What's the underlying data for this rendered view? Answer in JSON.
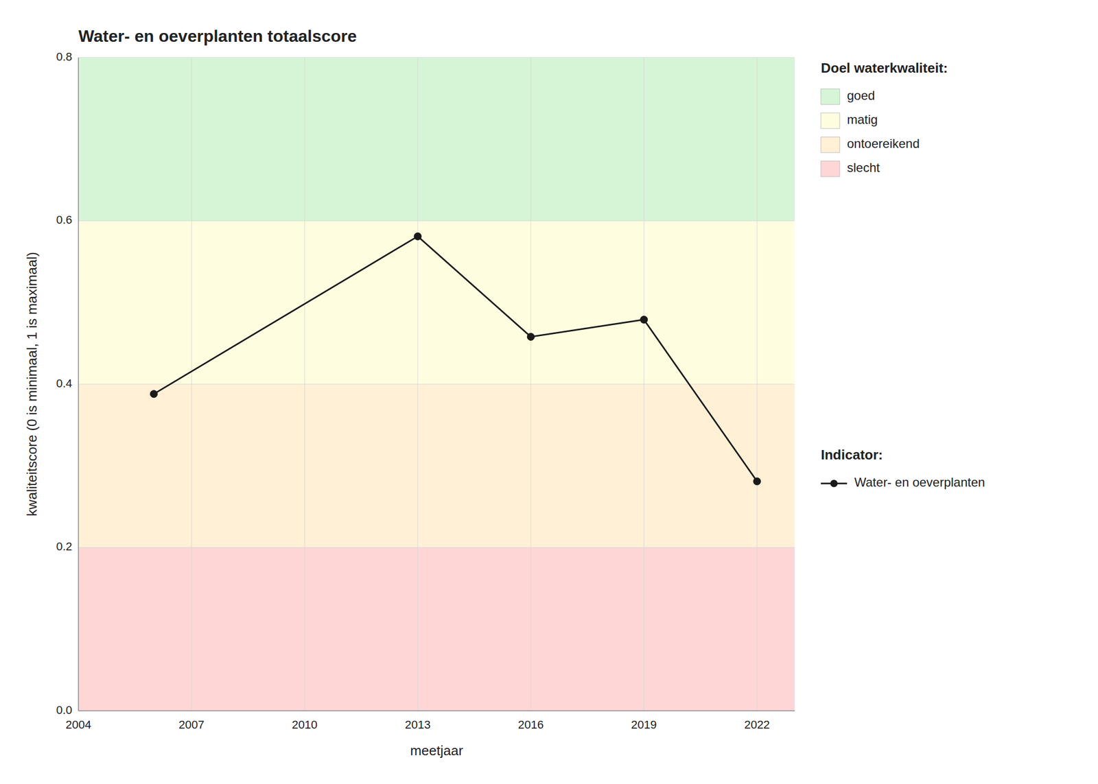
{
  "chart_data": {
    "type": "line",
    "title": "Water- en oeverplanten totaalscore",
    "x_label": "meetjaar",
    "y_label": "kwaliteitscore (0 is minimaal, 1 is maximaal)",
    "x": [
      2006,
      2013,
      2016,
      2019,
      2022
    ],
    "series": [
      {
        "name": "Water- en oeverplanten",
        "color": "#1a1a1a",
        "marker": "circle",
        "values": [
          0.388,
          0.581,
          0.458,
          0.479,
          0.281
        ]
      }
    ],
    "xlim": [
      2004,
      2023
    ],
    "ylim": [
      0.0,
      0.8
    ],
    "xticks": [
      2004,
      2007,
      2010,
      2013,
      2016,
      2019,
      2022
    ],
    "yticks": [
      {
        "value": 0.0,
        "label": "0.0"
      },
      0.2,
      0.4,
      0.6,
      0.8
    ],
    "grid": true,
    "legend": "right",
    "zones_title": "Doel waterkwaliteit:",
    "series_title": "Indicator:",
    "zones": [
      {
        "label": "slecht",
        "ymin": 0.0,
        "ymax": 0.2,
        "color": "#ffd6d6"
      },
      {
        "label": "ontoereikend",
        "ymin": 0.2,
        "ymax": 0.4,
        "color": "#fff0d6"
      },
      {
        "label": "matig",
        "ymin": 0.4,
        "ymax": 0.6,
        "color": "#fffde0"
      },
      {
        "label": "goed",
        "ymin": 0.6,
        "ymax": 0.8,
        "color": "#d6f5d6"
      }
    ]
  }
}
